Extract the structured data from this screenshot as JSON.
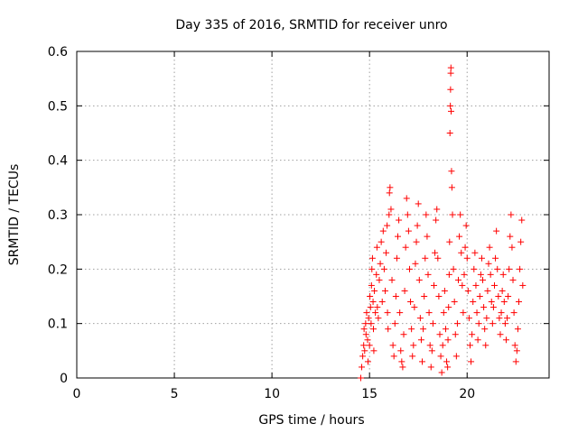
{
  "chart_data": {
    "type": "scatter",
    "title": "Day 335 of 2016, SRMTID for receiver unro",
    "xlabel": "GPS time / hours",
    "ylabel": "SRMTID / TECUs",
    "xlim": [
      0,
      24.2
    ],
    "ylim": [
      0,
      0.6
    ],
    "xticks": [
      0,
      5,
      10,
      15,
      20
    ],
    "xtick_labels": [
      "0",
      "5",
      "10",
      "15",
      "20"
    ],
    "yticks": [
      0,
      0.1,
      0.2,
      0.3,
      0.4,
      0.5,
      0.6
    ],
    "ytick_labels": [
      "0",
      "0.1",
      "0.2",
      "0.3",
      "0.4",
      "0.5",
      "0.6"
    ],
    "grid": true,
    "marker": "+",
    "color": "#ff0000",
    "series": [
      {
        "name": "SRMTID",
        "points": [
          [
            14.55,
            0.0
          ],
          [
            14.6,
            0.02
          ],
          [
            14.65,
            0.04
          ],
          [
            14.7,
            0.06
          ],
          [
            14.72,
            0.09
          ],
          [
            14.75,
            0.05
          ],
          [
            14.8,
            0.1
          ],
          [
            14.82,
            0.08
          ],
          [
            14.85,
            0.12
          ],
          [
            14.9,
            0.07
          ],
          [
            14.92,
            0.03
          ],
          [
            14.95,
            0.11
          ],
          [
            15.0,
            0.06
          ],
          [
            15.02,
            0.15
          ],
          [
            15.05,
            0.13
          ],
          [
            15.08,
            0.1
          ],
          [
            15.1,
            0.17
          ],
          [
            15.12,
            0.2
          ],
          [
            15.15,
            0.22
          ],
          [
            15.18,
            0.14
          ],
          [
            15.2,
            0.09
          ],
          [
            15.22,
            0.05
          ],
          [
            15.25,
            0.16
          ],
          [
            15.3,
            0.12
          ],
          [
            15.35,
            0.19
          ],
          [
            15.38,
            0.24
          ],
          [
            15.4,
            0.13
          ],
          [
            15.45,
            0.11
          ],
          [
            15.5,
            0.18
          ],
          [
            15.55,
            0.21
          ],
          [
            15.6,
            0.25
          ],
          [
            15.65,
            0.14
          ],
          [
            15.7,
            0.27
          ],
          [
            15.75,
            0.2
          ],
          [
            15.8,
            0.16
          ],
          [
            15.85,
            0.23
          ],
          [
            15.9,
            0.28
          ],
          [
            15.92,
            0.12
          ],
          [
            15.95,
            0.09
          ],
          [
            16.0,
            0.3
          ],
          [
            16.02,
            0.34
          ],
          [
            16.05,
            0.35
          ],
          [
            16.1,
            0.31
          ],
          [
            16.15,
            0.18
          ],
          [
            16.2,
            0.06
          ],
          [
            16.25,
            0.04
          ],
          [
            16.3,
            0.1
          ],
          [
            16.35,
            0.15
          ],
          [
            16.4,
            0.22
          ],
          [
            16.45,
            0.26
          ],
          [
            16.5,
            0.29
          ],
          [
            16.55,
            0.12
          ],
          [
            16.6,
            0.05
          ],
          [
            16.65,
            0.03
          ],
          [
            16.7,
            0.02
          ],
          [
            16.75,
            0.08
          ],
          [
            16.8,
            0.16
          ],
          [
            16.85,
            0.24
          ],
          [
            16.9,
            0.33
          ],
          [
            16.95,
            0.3
          ],
          [
            17.0,
            0.27
          ],
          [
            17.05,
            0.2
          ],
          [
            17.1,
            0.14
          ],
          [
            17.15,
            0.09
          ],
          [
            17.2,
            0.04
          ],
          [
            17.25,
            0.06
          ],
          [
            17.3,
            0.13
          ],
          [
            17.35,
            0.21
          ],
          [
            17.4,
            0.25
          ],
          [
            17.45,
            0.28
          ],
          [
            17.5,
            0.32
          ],
          [
            17.55,
            0.18
          ],
          [
            17.6,
            0.11
          ],
          [
            17.65,
            0.07
          ],
          [
            17.7,
            0.03
          ],
          [
            17.75,
            0.09
          ],
          [
            17.8,
            0.15
          ],
          [
            17.85,
            0.22
          ],
          [
            17.9,
            0.3
          ],
          [
            17.95,
            0.26
          ],
          [
            18.0,
            0.19
          ],
          [
            18.05,
            0.12
          ],
          [
            18.1,
            0.06
          ],
          [
            18.15,
            0.02
          ],
          [
            18.2,
            0.05
          ],
          [
            18.25,
            0.1
          ],
          [
            18.3,
            0.17
          ],
          [
            18.35,
            0.23
          ],
          [
            18.4,
            0.29
          ],
          [
            18.45,
            0.31
          ],
          [
            18.5,
            0.22
          ],
          [
            18.55,
            0.15
          ],
          [
            18.6,
            0.08
          ],
          [
            18.65,
            0.04
          ],
          [
            18.7,
            0.01
          ],
          [
            18.75,
            0.06
          ],
          [
            18.8,
            0.12
          ],
          [
            18.85,
            0.16
          ],
          [
            18.9,
            0.09
          ],
          [
            18.95,
            0.03
          ],
          [
            19.0,
            0.02
          ],
          [
            19.02,
            0.07
          ],
          [
            19.05,
            0.13
          ],
          [
            19.08,
            0.19
          ],
          [
            19.1,
            0.25
          ],
          [
            19.12,
            0.45
          ],
          [
            19.14,
            0.5
          ],
          [
            19.15,
            0.53
          ],
          [
            19.16,
            0.56
          ],
          [
            19.17,
            0.57
          ],
          [
            19.18,
            0.49
          ],
          [
            19.2,
            0.38
          ],
          [
            19.22,
            0.35
          ],
          [
            19.25,
            0.3
          ],
          [
            19.3,
            0.2
          ],
          [
            19.35,
            0.14
          ],
          [
            19.4,
            0.08
          ],
          [
            19.45,
            0.04
          ],
          [
            19.5,
            0.1
          ],
          [
            19.55,
            0.18
          ],
          [
            19.6,
            0.26
          ],
          [
            19.65,
            0.3
          ],
          [
            19.7,
            0.23
          ],
          [
            19.75,
            0.17
          ],
          [
            19.8,
            0.12
          ],
          [
            19.85,
            0.19
          ],
          [
            19.9,
            0.24
          ],
          [
            19.95,
            0.28
          ],
          [
            20.0,
            0.22
          ],
          [
            20.05,
            0.16
          ],
          [
            20.1,
            0.11
          ],
          [
            20.15,
            0.06
          ],
          [
            20.2,
            0.03
          ],
          [
            20.25,
            0.08
          ],
          [
            20.3,
            0.14
          ],
          [
            20.35,
            0.2
          ],
          [
            20.4,
            0.23
          ],
          [
            20.45,
            0.17
          ],
          [
            20.5,
            0.12
          ],
          [
            20.55,
            0.07
          ],
          [
            20.6,
            0.1
          ],
          [
            20.65,
            0.15
          ],
          [
            20.7,
            0.19
          ],
          [
            20.75,
            0.22
          ],
          [
            20.8,
            0.18
          ],
          [
            20.85,
            0.13
          ],
          [
            20.9,
            0.09
          ],
          [
            20.95,
            0.06
          ],
          [
            21.0,
            0.11
          ],
          [
            21.05,
            0.16
          ],
          [
            21.1,
            0.21
          ],
          [
            21.15,
            0.24
          ],
          [
            21.2,
            0.19
          ],
          [
            21.25,
            0.14
          ],
          [
            21.3,
            0.1
          ],
          [
            21.35,
            0.13
          ],
          [
            21.4,
            0.17
          ],
          [
            21.45,
            0.22
          ],
          [
            21.5,
            0.27
          ],
          [
            21.55,
            0.2
          ],
          [
            21.6,
            0.15
          ],
          [
            21.65,
            0.11
          ],
          [
            21.7,
            0.08
          ],
          [
            21.75,
            0.12
          ],
          [
            21.8,
            0.16
          ],
          [
            21.85,
            0.19
          ],
          [
            21.9,
            0.14
          ],
          [
            21.95,
            0.1
          ],
          [
            22.0,
            0.07
          ],
          [
            22.05,
            0.11
          ],
          [
            22.1,
            0.15
          ],
          [
            22.15,
            0.2
          ],
          [
            22.2,
            0.26
          ],
          [
            22.25,
            0.3
          ],
          [
            22.3,
            0.24
          ],
          [
            22.35,
            0.18
          ],
          [
            22.4,
            0.12
          ],
          [
            22.45,
            0.06
          ],
          [
            22.5,
            0.03
          ],
          [
            22.55,
            0.05
          ],
          [
            22.6,
            0.09
          ],
          [
            22.65,
            0.14
          ],
          [
            22.7,
            0.2
          ],
          [
            22.75,
            0.25
          ],
          [
            22.8,
            0.29
          ],
          [
            22.85,
            0.17
          ]
        ]
      }
    ]
  }
}
